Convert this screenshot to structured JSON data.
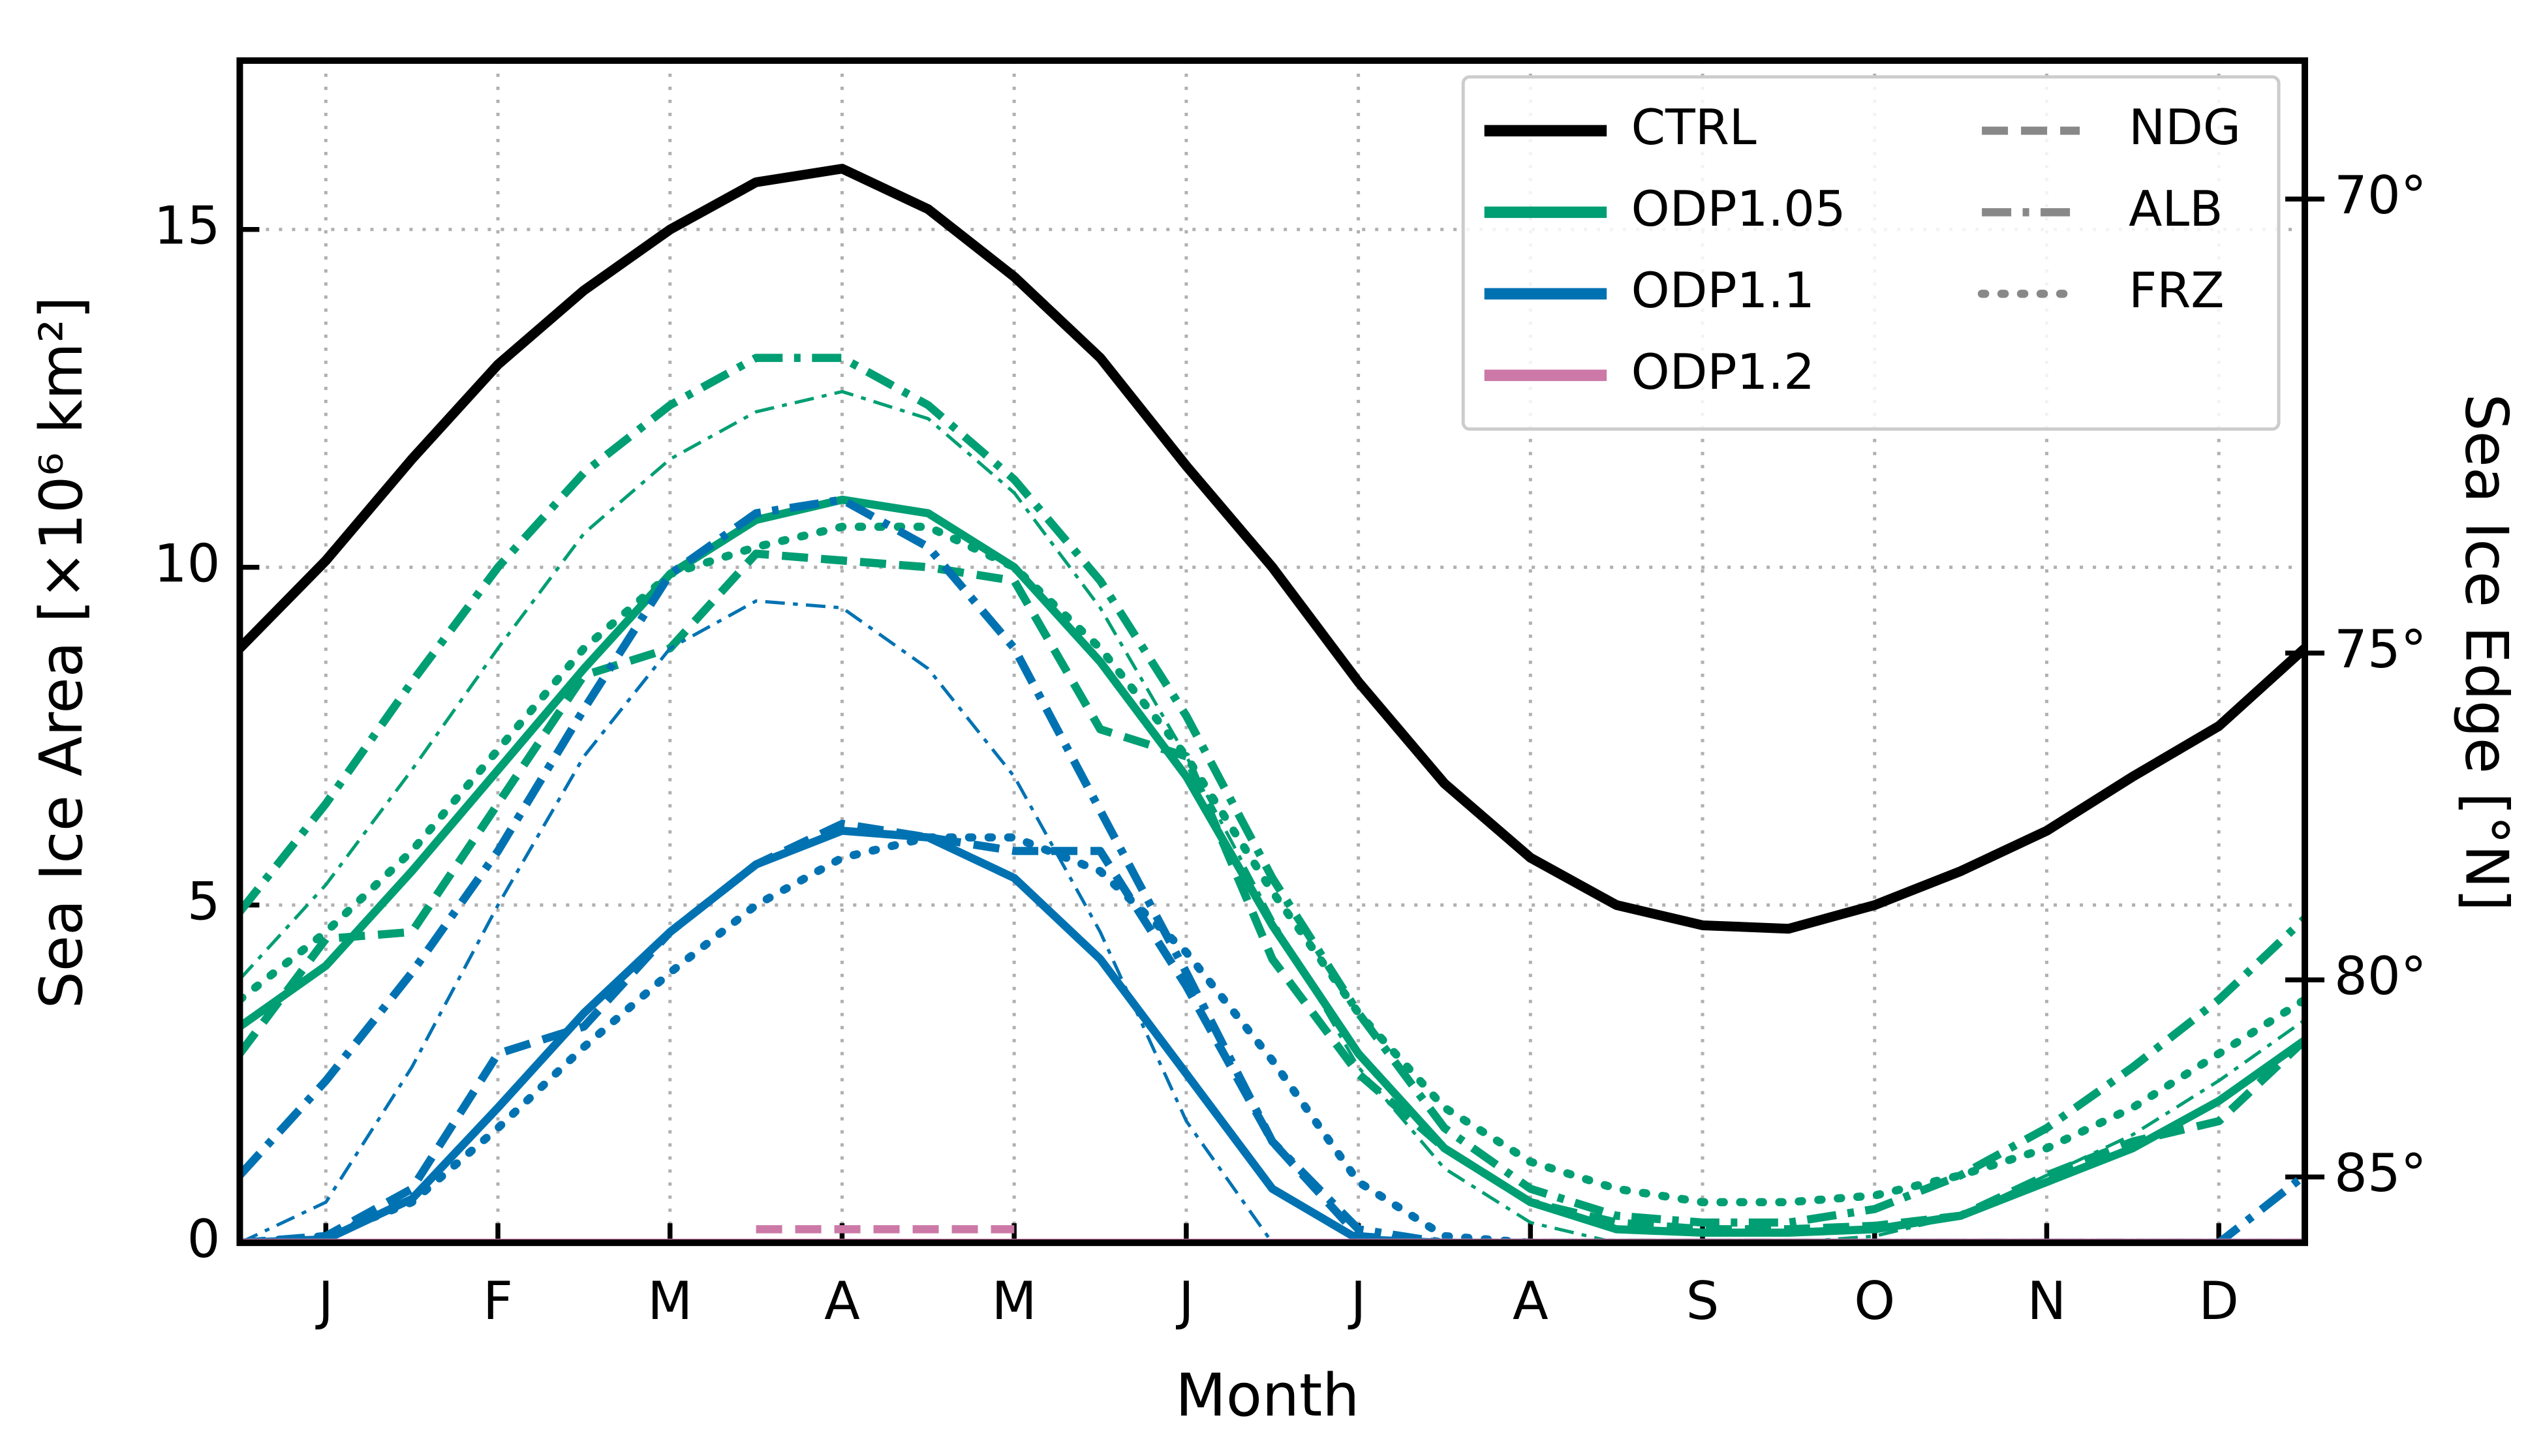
{
  "chart_data": {
    "type": "line",
    "xlabel": "Month",
    "ylabel": "Sea Ice Area [×10⁶ km²]",
    "y2label": "Sea Ice Edge [°N]",
    "x": [
      0,
      0.5,
      1,
      1.5,
      2,
      2.5,
      3,
      3.5,
      4,
      4.5,
      5,
      5.5,
      6,
      6.5,
      7,
      7.5,
      8,
      8.5,
      9,
      9.5,
      10,
      10.5,
      11,
      11.5,
      12
    ],
    "xlim": [
      0,
      12
    ],
    "xticks": [
      {
        "value": 0.5,
        "label": "J"
      },
      {
        "value": 1.5,
        "label": "F"
      },
      {
        "value": 2.5,
        "label": "M"
      },
      {
        "value": 3.5,
        "label": "A"
      },
      {
        "value": 4.5,
        "label": "M"
      },
      {
        "value": 5.5,
        "label": "J"
      },
      {
        "value": 6.5,
        "label": "J"
      },
      {
        "value": 7.5,
        "label": "A"
      },
      {
        "value": 8.5,
        "label": "S"
      },
      {
        "value": 9.5,
        "label": "O"
      },
      {
        "value": 10.5,
        "label": "N"
      },
      {
        "value": 11.5,
        "label": "D"
      }
    ],
    "ylim": [
      0,
      17.5
    ],
    "yticks": [
      0,
      5,
      10,
      15
    ],
    "y2scale": "polar-cap",
    "y2lim": [
      68.7,
      90
    ],
    "y2ticks": [
      {
        "value": 70,
        "label": "70°"
      },
      {
        "value": 75,
        "label": "75°"
      },
      {
        "value": 80,
        "label": "80°"
      },
      {
        "value": 85,
        "label": "85°"
      }
    ],
    "grid": true,
    "legend": "upper right",
    "legend_colors": [
      {
        "name": "CTRL",
        "color": "#000000"
      },
      {
        "name": "ODP1.05",
        "color": "#009e73"
      },
      {
        "name": "ODP1.1",
        "color": "#0072b2"
      },
      {
        "name": "ODP1.2",
        "color": "#cc79a7"
      }
    ],
    "legend_styles": [
      {
        "name": "NDG",
        "style": "dashed"
      },
      {
        "name": "ALB",
        "style": "dashdot"
      },
      {
        "name": "FRZ",
        "style": "dotted"
      }
    ],
    "series": [
      {
        "experiment": 0,
        "style": "solid",
        "values": [
          8.8,
          10.1,
          11.6,
          13.0,
          14.1,
          15.0,
          15.7,
          15.9,
          15.3,
          14.3,
          13.1,
          11.5,
          10.0,
          8.3,
          6.8,
          5.7,
          5.0,
          4.7,
          4.65,
          5.0,
          5.5,
          6.1,
          6.9,
          7.65,
          8.8
        ]
      },
      {
        "experiment": 1,
        "style": "solid",
        "values": [
          3.2,
          4.1,
          5.5,
          7.0,
          8.5,
          9.9,
          10.7,
          11.0,
          10.8,
          10.0,
          8.6,
          6.9,
          4.7,
          2.8,
          1.4,
          0.6,
          0.2,
          0.15,
          0.15,
          0.2,
          0.4,
          0.9,
          1.4,
          2.1,
          3.0
        ]
      },
      {
        "experiment": 1,
        "style": "dashed",
        "values": [
          2.8,
          4.5,
          4.6,
          6.5,
          8.4,
          8.8,
          10.2,
          10.1,
          10.0,
          9.8,
          7.6,
          7.2,
          4.2,
          2.5,
          1.4,
          0.6,
          0.3,
          0.2,
          0.2,
          0.25,
          0.4,
          1.0,
          1.5,
          1.8,
          3.0
        ]
      },
      {
        "experiment": 1,
        "style": "dashdot",
        "values": [
          4.9,
          6.5,
          8.3,
          10.0,
          11.4,
          12.4,
          13.1,
          13.1,
          12.4,
          11.3,
          9.8,
          7.8,
          5.4,
          3.4,
          1.7,
          0.8,
          0.4,
          0.3,
          0.3,
          0.5,
          1.0,
          1.7,
          2.6,
          3.6,
          4.8
        ]
      },
      {
        "experiment": 1,
        "style": "dotted",
        "values": [
          3.6,
          4.6,
          5.8,
          7.3,
          8.8,
          9.9,
          10.3,
          10.6,
          10.6,
          10.0,
          8.8,
          7.2,
          5.2,
          3.4,
          2.0,
          1.2,
          0.8,
          0.6,
          0.6,
          0.7,
          1.0,
          1.4,
          2.0,
          2.8,
          3.6
        ]
      },
      {
        "experiment": 1,
        "style": "thin-dashdot",
        "values": [
          3.9,
          5.3,
          7.0,
          8.8,
          10.5,
          11.6,
          12.3,
          12.6,
          12.2,
          11.1,
          9.4,
          7.2,
          4.8,
          2.6,
          1.1,
          0.3,
          0,
          0,
          0,
          0.1,
          0.4,
          1.0,
          1.6,
          2.4,
          3.3
        ]
      },
      {
        "experiment": 2,
        "style": "solid",
        "values": [
          0,
          0.05,
          0.65,
          2.0,
          3.4,
          4.6,
          5.6,
          6.1,
          6.0,
          5.4,
          4.2,
          2.5,
          0.8,
          0.05,
          0,
          0,
          0,
          0,
          0,
          0,
          0,
          0,
          0,
          0,
          0
        ]
      },
      {
        "experiment": 2,
        "style": "dashed",
        "values": [
          0,
          0.1,
          0.8,
          2.8,
          3.2,
          4.6,
          5.6,
          6.2,
          6.0,
          5.8,
          5.8,
          3.8,
          1.5,
          0.1,
          0,
          0,
          0,
          0,
          0,
          0,
          0,
          0,
          0,
          0,
          0
        ]
      },
      {
        "experiment": 2,
        "style": "dashdot",
        "values": [
          1.0,
          2.4,
          4.0,
          5.8,
          7.9,
          9.9,
          10.8,
          11.0,
          10.3,
          8.8,
          6.4,
          4.0,
          1.5,
          0.2,
          0,
          0,
          0,
          0,
          0,
          0,
          0,
          0,
          0,
          0,
          1.0
        ]
      },
      {
        "experiment": 2,
        "style": "dotted",
        "values": [
          0,
          0.1,
          0.6,
          1.7,
          2.9,
          4.0,
          5.0,
          5.7,
          6.0,
          6.0,
          5.5,
          4.3,
          2.7,
          0.9,
          0.1,
          0,
          0,
          0,
          0,
          0,
          0,
          0,
          0,
          0,
          0
        ]
      },
      {
        "experiment": 2,
        "style": "thin-dashdot",
        "values": [
          0,
          0.6,
          2.6,
          5.0,
          7.2,
          8.8,
          9.5,
          9.4,
          8.5,
          6.9,
          4.6,
          1.8,
          0,
          0,
          0,
          0,
          0,
          0,
          0,
          0,
          0,
          0,
          0,
          0,
          0
        ]
      },
      {
        "experiment": 3,
        "style": "solid",
        "values": [
          0,
          0,
          0,
          0,
          0,
          0,
          0,
          0,
          0,
          0,
          0,
          0,
          0,
          0,
          0,
          0,
          0,
          0,
          0,
          0,
          0,
          0,
          0,
          0,
          0
        ]
      },
      {
        "experiment": 3,
        "style": "dashed",
        "values": [
          null,
          null,
          null,
          null,
          null,
          null,
          0.2,
          0.2,
          0.2,
          0.2,
          null,
          null,
          null,
          null,
          null,
          null,
          null,
          null,
          null,
          null,
          null,
          null,
          null,
          null,
          null
        ]
      }
    ]
  }
}
